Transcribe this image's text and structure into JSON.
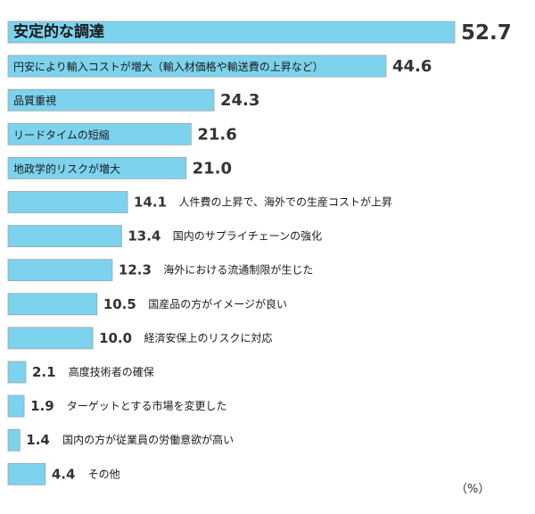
{
  "chart_data": {
    "type": "bar",
    "orientation": "horizontal",
    "unit": "（%）",
    "bar_color": "#7dd3ee",
    "bar_border": "#9aa4a8",
    "categories": [
      "安定的な調達",
      "円安により輸入コストが増大（輸入材価格や輸送費の上昇など）",
      "品質重視",
      "リードタイムの短縮",
      "地政学的リスクが増大",
      "人件費の上昇で、海外での生産コストが上昇",
      "国内のサプライチェーンの強化",
      "海外における流通制限が生じた",
      "国産品の方がイメージが良い",
      "経済安保上のリスクに対応",
      "高度技術者の確保",
      "ターゲットとする市場を変更した",
      "国内の方が従業員の労働意欲が高い",
      "その他"
    ],
    "values": [
      52.7,
      44.6,
      24.3,
      21.6,
      21.0,
      14.1,
      13.4,
      12.3,
      10.5,
      10.0,
      2.1,
      1.9,
      1.4,
      4.4
    ],
    "value_labels": [
      "52.7",
      "44.6",
      "24.3",
      "21.6",
      "21.0",
      "14.1",
      "13.4",
      "12.3",
      "10.5",
      "10.0",
      "2.1",
      "1.9",
      "1.4",
      "4.4"
    ],
    "xlim": [
      0,
      52.7
    ]
  }
}
